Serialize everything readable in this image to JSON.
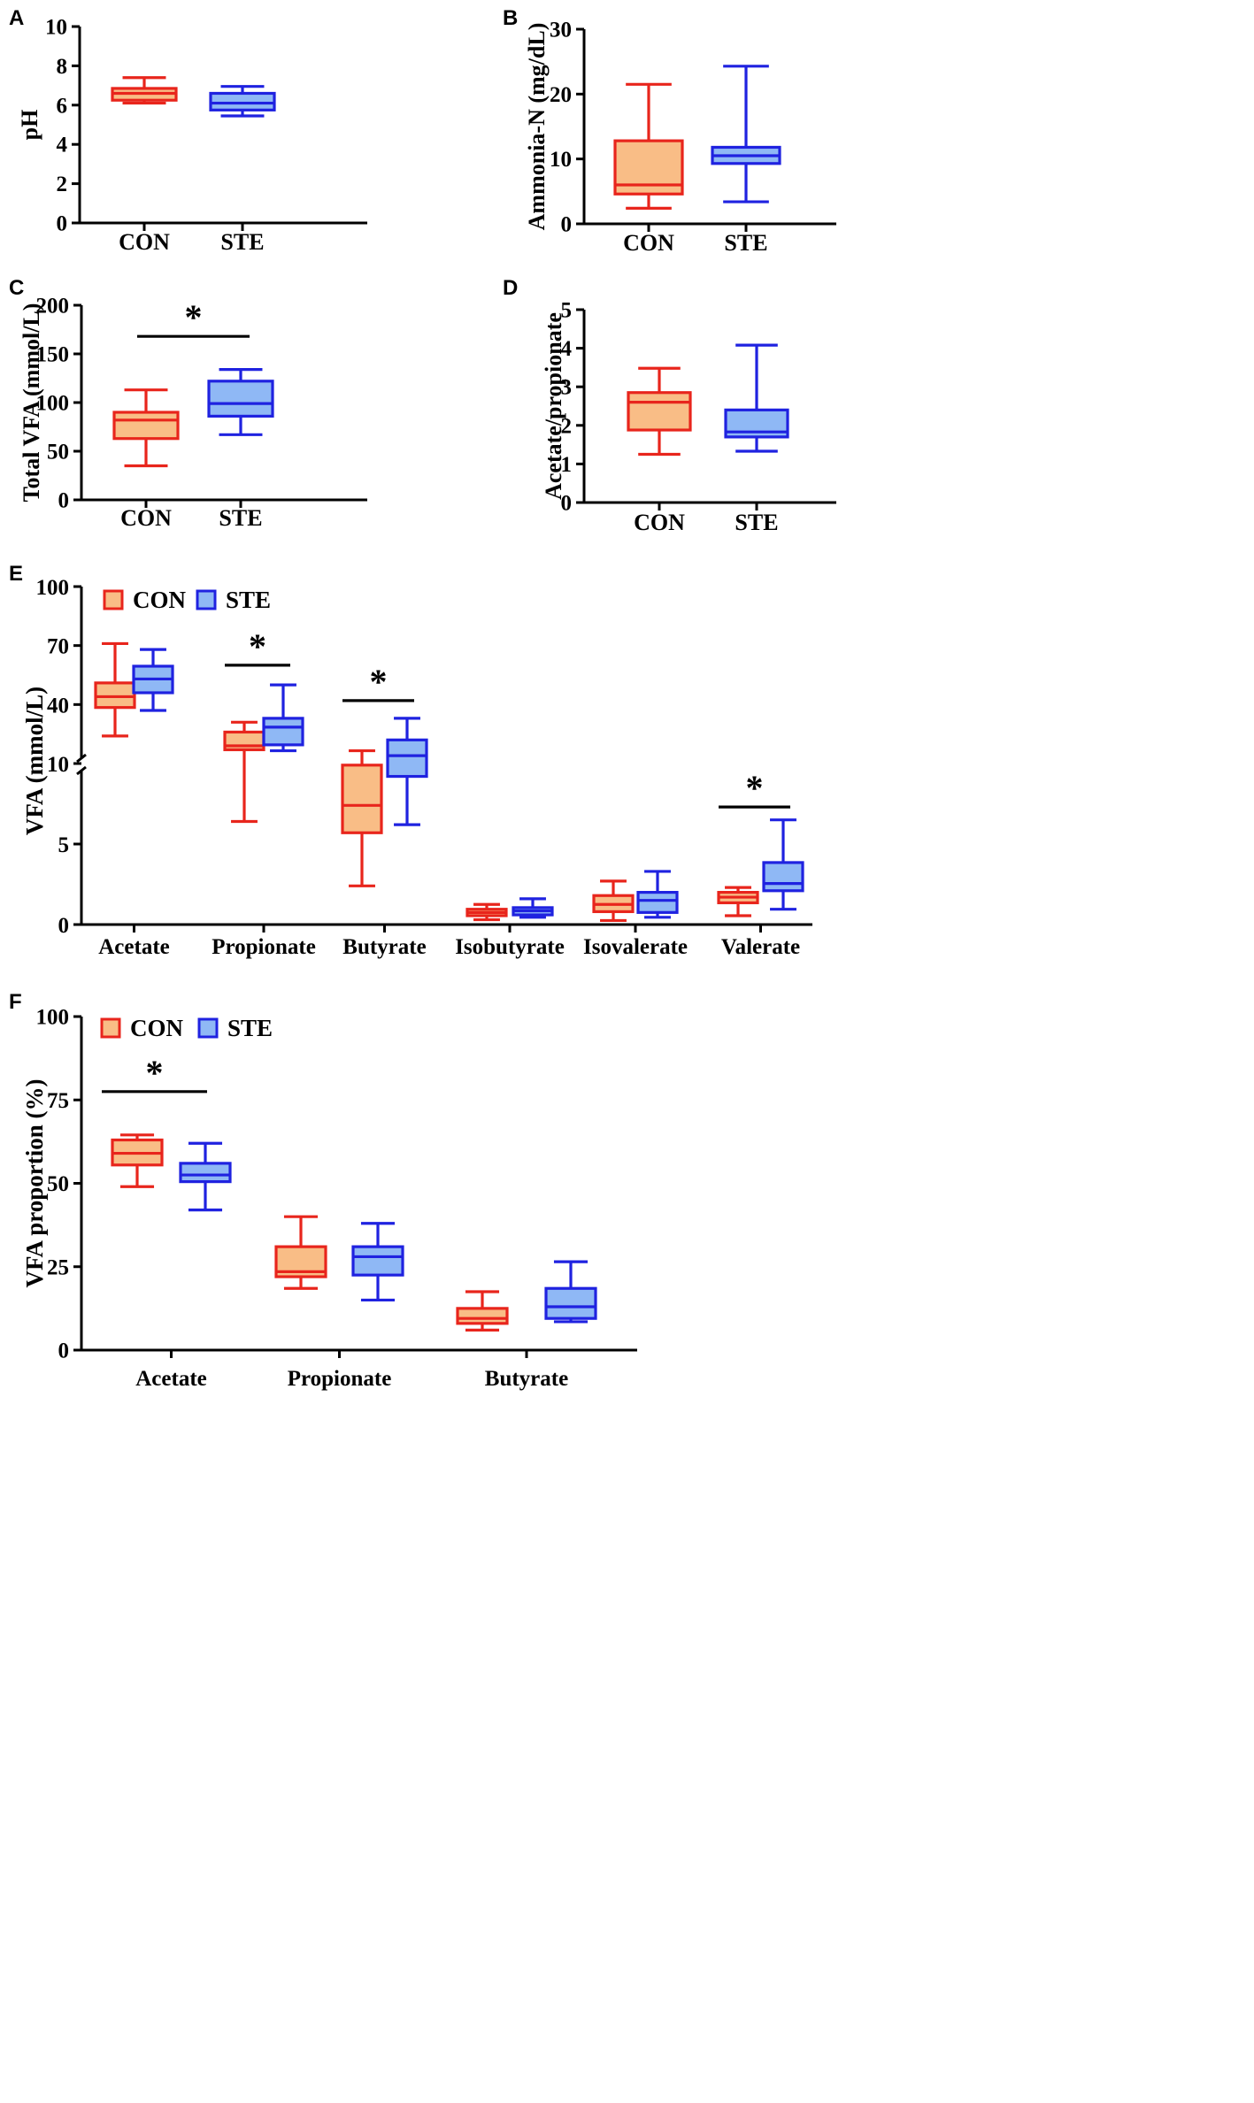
{
  "colors": {
    "con_stroke": "#e8251c",
    "con_fill": "#f9bd86",
    "ste_stroke": "#1f22e0",
    "ste_fill": "#8fb8f5",
    "axis": "#000000"
  },
  "chart_data": [
    {
      "id": "A",
      "type": "box",
      "panel_label": "A",
      "title": "",
      "xlabel": "",
      "ylabel": "pH",
      "ylim": [
        0,
        10
      ],
      "yticks": [
        0,
        2,
        4,
        6,
        8,
        10
      ],
      "categories": [
        "CON",
        "STE"
      ],
      "boxes": [
        {
          "group": "CON",
          "min": 6.1,
          "q1": 6.25,
          "median": 6.6,
          "q3": 6.85,
          "max": 7.4
        },
        {
          "group": "STE",
          "min": 5.45,
          "q1": 5.75,
          "median": 6.1,
          "q3": 6.6,
          "max": 6.95
        }
      ],
      "significance": []
    },
    {
      "id": "B",
      "type": "box",
      "panel_label": "B",
      "title": "",
      "xlabel": "",
      "ylabel": "Ammonia-N (mg/dL)",
      "ylim": [
        0,
        30
      ],
      "yticks": [
        0,
        10,
        20,
        30
      ],
      "categories": [
        "CON",
        "STE"
      ],
      "boxes": [
        {
          "group": "CON",
          "min": 2.4,
          "q1": 4.6,
          "median": 6.0,
          "q3": 12.8,
          "max": 21.5
        },
        {
          "group": "STE",
          "min": 3.4,
          "q1": 9.3,
          "median": 10.5,
          "q3": 11.8,
          "max": 24.3
        }
      ],
      "significance": []
    },
    {
      "id": "C",
      "type": "box",
      "panel_label": "C",
      "title": "",
      "xlabel": "",
      "ylabel": "Total VFA (mmol/L)",
      "ylim": [
        0,
        200
      ],
      "yticks": [
        0,
        50,
        100,
        150,
        200
      ],
      "categories": [
        "CON",
        "STE"
      ],
      "boxes": [
        {
          "group": "CON",
          "min": 35,
          "q1": 63,
          "median": 82,
          "q3": 90,
          "max": 113
        },
        {
          "group": "STE",
          "min": 67,
          "q1": 86,
          "median": 99,
          "q3": 122,
          "max": 134
        }
      ],
      "significance": [
        {
          "from": 0,
          "to": 1,
          "y": 168,
          "label": "*"
        }
      ]
    },
    {
      "id": "D",
      "type": "box",
      "panel_label": "D",
      "title": "",
      "xlabel": "",
      "ylabel": "Acetate/propionate",
      "ylim": [
        0,
        5
      ],
      "yticks": [
        0,
        1,
        2,
        3,
        4,
        5
      ],
      "categories": [
        "CON",
        "STE"
      ],
      "boxes": [
        {
          "group": "CON",
          "min": 1.25,
          "q1": 1.88,
          "median": 2.6,
          "q3": 2.85,
          "max": 3.48
        },
        {
          "group": "STE",
          "min": 1.33,
          "q1": 1.7,
          "median": 1.83,
          "q3": 2.4,
          "max": 4.08
        }
      ],
      "significance": []
    },
    {
      "id": "E",
      "type": "box",
      "panel_label": "E",
      "title": "",
      "xlabel": "",
      "ylabel": "VFA (mmol/L)",
      "axis_break": 10,
      "lower_yticks": [
        0,
        5,
        10
      ],
      "upper_yticks": [
        40,
        70,
        100
      ],
      "ylim": [
        0,
        100
      ],
      "legend": [
        "CON",
        "STE"
      ],
      "categories": [
        "Acetate",
        "Propionate",
        "Butyrate",
        "Isobutyrate",
        "Isovalerate",
        "Valerate"
      ],
      "series": [
        {
          "name": "CON",
          "boxes": [
            {
              "min": 24,
              "q1": 38.5,
              "median": 44,
              "q3": 51,
              "max": 71
            },
            {
              "min": 6.4,
              "q1": 17,
              "median": 19,
              "q3": 26,
              "max": 31
            },
            {
              "min": 2.4,
              "q1": 5.7,
              "median": 7.4,
              "q3": 9.9,
              "max": 16.5
            },
            {
              "min": 0.3,
              "q1": 0.55,
              "median": 0.75,
              "q3": 0.95,
              "max": 1.25
            },
            {
              "min": 0.25,
              "q1": 0.8,
              "median": 1.25,
              "q3": 1.8,
              "max": 2.7
            },
            {
              "min": 0.55,
              "q1": 1.35,
              "median": 1.7,
              "q3": 2.0,
              "max": 2.3
            }
          ]
        },
        {
          "name": "STE",
          "boxes": [
            {
              "min": 37,
              "q1": 46,
              "median": 53,
              "q3": 59.5,
              "max": 68
            },
            {
              "min": 16.5,
              "q1": 19.5,
              "median": 28.5,
              "q3": 33,
              "max": 50
            },
            {
              "min": 6.2,
              "q1": 9.2,
              "median": 14,
              "q3": 22,
              "max": 33
            },
            {
              "min": 0.45,
              "q1": 0.6,
              "median": 0.85,
              "q3": 1.05,
              "max": 1.6
            },
            {
              "min": 0.45,
              "q1": 0.75,
              "median": 1.5,
              "q3": 2.0,
              "max": 3.3
            },
            {
              "min": 0.95,
              "q1": 2.1,
              "median": 2.55,
              "q3": 3.85,
              "max": 6.5
            }
          ]
        }
      ],
      "significance": [
        {
          "category": 1,
          "y": 60,
          "label": "*"
        },
        {
          "category": 2,
          "y": 42,
          "label": "*"
        },
        {
          "category": 5,
          "y": 7.3,
          "label": "*"
        }
      ]
    },
    {
      "id": "F",
      "type": "box",
      "panel_label": "F",
      "title": "",
      "xlabel": "",
      "ylabel": "VFA proportion (%)",
      "ylim": [
        0,
        100
      ],
      "yticks": [
        0,
        25,
        50,
        75,
        100
      ],
      "legend": [
        "CON",
        "STE"
      ],
      "categories": [
        "Acetate",
        "Propionate",
        "Butyrate"
      ],
      "series": [
        {
          "name": "CON",
          "boxes": [
            {
              "min": 49,
              "q1": 55.5,
              "median": 59,
              "q3": 63,
              "max": 64.5
            },
            {
              "min": 18.5,
              "q1": 22,
              "median": 23.5,
              "q3": 31,
              "max": 40
            },
            {
              "min": 6,
              "q1": 8,
              "median": 9.5,
              "q3": 12.5,
              "max": 17.5
            }
          ]
        },
        {
          "name": "STE",
          "boxes": [
            {
              "min": 42,
              "q1": 50.5,
              "median": 52.5,
              "q3": 56,
              "max": 62
            },
            {
              "min": 15,
              "q1": 22.5,
              "median": 28,
              "q3": 31,
              "max": 38
            },
            {
              "min": 8.5,
              "q1": 9.5,
              "median": 13,
              "q3": 18.5,
              "max": 26.5
            }
          ]
        }
      ],
      "significance": [
        {
          "category": 0,
          "y": 77.5,
          "label": "*"
        }
      ]
    }
  ]
}
